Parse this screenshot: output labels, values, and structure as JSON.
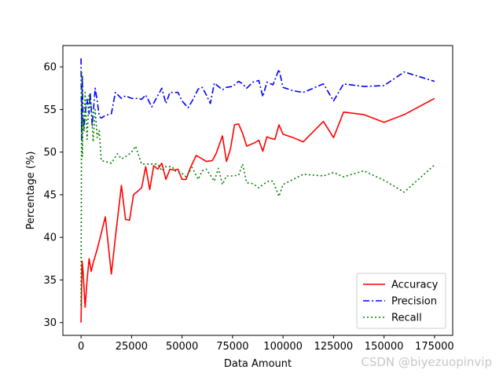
{
  "chart_data": {
    "type": "line",
    "xlabel": "Data Amount",
    "ylabel": "Percentage (%)",
    "xlim": [
      -9000,
      184000
    ],
    "ylim": [
      28.5,
      62.5
    ],
    "x_ticks": [
      0,
      25000,
      50000,
      75000,
      100000,
      125000,
      150000,
      175000
    ],
    "y_ticks": [
      30,
      35,
      40,
      45,
      50,
      55,
      60
    ],
    "grid": false,
    "legend": "lower-right",
    "series": [
      {
        "name": "Accuracy",
        "color": "#ff0000",
        "style": "solid",
        "x": [
          0,
          500,
          1000,
          2000,
          3000,
          4000,
          5000,
          6000,
          8000,
          10000,
          12000,
          15000,
          17000,
          20000,
          22000,
          24000,
          26000,
          28000,
          30000,
          32000,
          34000,
          36000,
          38000,
          40000,
          42000,
          44000,
          46000,
          48000,
          50000,
          52000,
          54000,
          57000,
          60000,
          62000,
          65000,
          67000,
          70000,
          72000,
          74000,
          76000,
          78000,
          80000,
          82000,
          84000,
          86000,
          88000,
          90000,
          92000,
          94000,
          96000,
          98000,
          100000,
          105000,
          110000,
          120000,
          125000,
          130000,
          140000,
          150000,
          160000,
          175000
        ],
        "values": [
          30.0,
          37.2,
          36.0,
          31.8,
          35.0,
          37.5,
          36.0,
          37.0,
          38.6,
          40.5,
          42.4,
          35.7,
          40.0,
          46.1,
          42.1,
          42.0,
          45.0,
          45.4,
          45.8,
          48.3,
          45.6,
          48.4,
          48.0,
          48.7,
          46.8,
          48.0,
          47.9,
          48.0,
          46.8,
          46.8,
          48.1,
          49.6,
          49.2,
          48.9,
          49.0,
          49.9,
          51.9,
          48.9,
          50.4,
          53.2,
          53.3,
          52.2,
          50.7,
          50.9,
          51.1,
          51.4,
          50.1,
          51.8,
          51.6,
          51.5,
          53.2,
          52.1,
          51.7,
          51.2,
          53.6,
          51.7,
          54.7,
          54.4,
          53.5,
          54.4,
          56.3
        ]
      },
      {
        "name": "Precision",
        "color": "#0000ff",
        "style": "dashdot",
        "x": [
          0,
          300,
          600,
          1000,
          1500,
          2000,
          3000,
          4000,
          4500,
          5000,
          5500,
          6000,
          7000,
          8000,
          9000,
          10000,
          12000,
          15000,
          17000,
          20000,
          22000,
          25000,
          28000,
          30000,
          32000,
          35000,
          37000,
          40000,
          42000,
          44000,
          46000,
          48000,
          50000,
          53000,
          55000,
          58000,
          60000,
          62000,
          64000,
          66000,
          68000,
          70000,
          72000,
          75000,
          78000,
          80000,
          82000,
          85000,
          88000,
          90000,
          92000,
          95000,
          98000,
          100000,
          105000,
          110000,
          120000,
          125000,
          130000,
          140000,
          150000,
          160000,
          175000
        ],
        "values": [
          61.0,
          51.5,
          59.0,
          54.0,
          52.8,
          54.5,
          56.2,
          54.5,
          57.0,
          55.2,
          53.0,
          54.5,
          57.5,
          56.0,
          54.2,
          54.0,
          54.3,
          54.5,
          57.0,
          56.3,
          56.6,
          56.3,
          56.3,
          56.2,
          56.7,
          55.3,
          56.2,
          57.5,
          55.7,
          57.0,
          57.0,
          57.0,
          56.0,
          55.2,
          56.0,
          57.4,
          57.6,
          56.7,
          55.7,
          58.1,
          57.7,
          57.3,
          57.6,
          57.7,
          58.3,
          58.0,
          57.5,
          58.2,
          58.4,
          56.5,
          58.2,
          57.9,
          59.7,
          57.6,
          57.2,
          57.0,
          58.0,
          56.0,
          58.0,
          57.7,
          57.8,
          59.4,
          58.3
        ]
      },
      {
        "name": "Recall",
        "color": "#008000",
        "style": "dotted",
        "x": [
          0,
          300,
          600,
          1000,
          1500,
          2000,
          3000,
          4000,
          5000,
          6000,
          7000,
          8000,
          9000,
          10000,
          12000,
          15000,
          18000,
          20000,
          23000,
          25000,
          27000,
          30000,
          32000,
          35000,
          38000,
          40000,
          42000,
          45000,
          47000,
          50000,
          52000,
          55000,
          58000,
          60000,
          62000,
          64000,
          66000,
          68000,
          70000,
          72000,
          75000,
          78000,
          80000,
          82000,
          85000,
          88000,
          90000,
          93000,
          95000,
          98000,
          100000,
          105000,
          110000,
          120000,
          125000,
          130000,
          140000,
          150000,
          160000,
          175000
        ],
        "values": [
          32.0,
          59.5,
          49.5,
          54.0,
          52.5,
          57.0,
          51.5,
          56.8,
          55.5,
          51.2,
          55.0,
          51.7,
          52.5,
          49.0,
          48.9,
          48.7,
          49.8,
          49.2,
          49.6,
          50.0,
          50.7,
          48.6,
          48.6,
          48.6,
          48.6,
          47.8,
          48.3,
          48.3,
          47.7,
          47.5,
          47.1,
          48.2,
          46.8,
          47.8,
          48.0,
          47.3,
          46.6,
          48.1,
          46.2,
          47.2,
          47.2,
          47.3,
          48.6,
          46.4,
          46.3,
          45.8,
          46.2,
          46.6,
          46.6,
          44.8,
          46.2,
          46.8,
          47.4,
          47.2,
          47.6,
          47.1,
          47.8,
          46.7,
          45.3,
          48.5
        ]
      }
    ]
  },
  "watermark": "CSDN @biyezuopinvip"
}
